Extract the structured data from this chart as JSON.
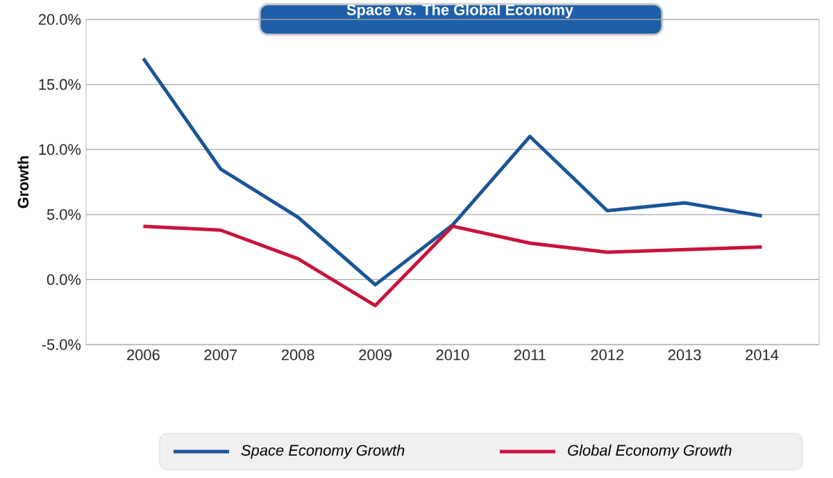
{
  "chart_data": {
    "type": "line",
    "title": "Space vs. The Global Economy",
    "ylabel": "Growth",
    "categories": [
      "2006",
      "2007",
      "2008",
      "2009",
      "2010",
      "2011",
      "2012",
      "2013",
      "2014"
    ],
    "series": [
      {
        "name": "Space Economy Growth",
        "color": "#1a5596",
        "values": [
          17.0,
          8.5,
          4.8,
          -0.4,
          4.2,
          11.0,
          5.3,
          5.9,
          4.9
        ]
      },
      {
        "name": "Global Economy Growth",
        "color": "#c8143c",
        "values": [
          4.1,
          3.8,
          1.6,
          -2.0,
          4.1,
          2.8,
          2.1,
          2.3,
          2.5
        ]
      }
    ],
    "ylim": [
      -5,
      20
    ],
    "yticks": [
      {
        "value": -5,
        "label": "-5.0%"
      },
      {
        "value": 0,
        "label": "0.0%"
      },
      {
        "value": 5,
        "label": "5.0%"
      },
      {
        "value": 10,
        "label": "10.0%"
      },
      {
        "value": 15,
        "label": "15.0%"
      },
      {
        "value": 20,
        "label": "20.0%"
      }
    ],
    "grid": "y",
    "legend": "bottom",
    "marker": "none",
    "line_style": "solid"
  }
}
